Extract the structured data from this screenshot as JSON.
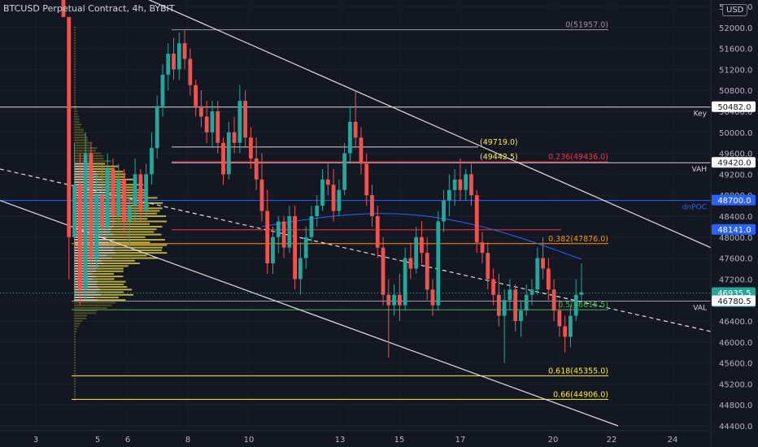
{
  "header": {
    "title": "BTCUSD Perpetual Contract, 4h, BYBIT",
    "currency_button": "USD"
  },
  "chart_data": {
    "type": "candlestick",
    "x_axis": {
      "labels": [
        "3",
        "5",
        "6",
        "8",
        "10",
        "13",
        "15",
        "17",
        "20",
        "22",
        "24"
      ]
    },
    "y_axis": {
      "range": [
        44300,
        52500
      ],
      "ticks": [
        52400,
        52000,
        51600,
        51200,
        50800,
        50400,
        50000,
        49600,
        49200,
        48800,
        48400,
        48000,
        47600,
        47200,
        46800,
        46400,
        46000,
        45600,
        45200,
        44800,
        44400
      ]
    },
    "fib_levels": [
      {
        "label": "0(51957.0)",
        "value": 51957.0,
        "color": "#9598a1"
      },
      {
        "label": "0.236(49436.0)",
        "value": 49436.0,
        "color": "#f23645"
      },
      {
        "label": "0.382(47876.0)",
        "value": 47876.0,
        "color": "#ff9800"
      },
      {
        "label": "0.5(46615.5)",
        "value": 46615.5,
        "color": "#4caf50"
      },
      {
        "label": "0.618(45355.0)",
        "value": 45355.0,
        "color": "#ffeb3b"
      },
      {
        "label": "0.66(44906.0)",
        "value": 44906.0,
        "color": "#ffeb3b"
      }
    ],
    "annotations": [
      {
        "text": "(49719.0)",
        "value": 49719.0
      },
      {
        "text": "(49442.5)",
        "value": 49442.5
      }
    ],
    "price_tags": [
      {
        "label": "Key",
        "value": 50482.0,
        "text": "50482.0"
      },
      {
        "label": "VAH",
        "value": 49420.0,
        "text": "49420.0"
      },
      {
        "label": "dnPOC",
        "value": 48700.0,
        "text": "48700.0"
      },
      {
        "label": "",
        "value": 48141.0,
        "text": "48141.0"
      },
      {
        "label": "",
        "value": 46935.5,
        "text": "46935.5",
        "countdown": "01:08:55"
      },
      {
        "label": "VAL",
        "value": 46780.5,
        "text": "46780.5"
      }
    ],
    "candles": [
      [
        52700,
        53400,
        52200,
        52200
      ],
      [
        52200,
        52200,
        47200,
        48000
      ],
      [
        48000,
        49800,
        46800,
        49000
      ],
      [
        49000,
        49600,
        46700,
        47000
      ],
      [
        47000,
        50000,
        46800,
        49600
      ],
      [
        49600,
        49800,
        47300,
        47600
      ],
      [
        47600,
        49200,
        47400,
        48800
      ],
      [
        48800,
        49400,
        48000,
        48200
      ],
      [
        48200,
        49600,
        48000,
        49300
      ],
      [
        49300,
        49500,
        48200,
        48400
      ],
      [
        48400,
        49400,
        48200,
        49100
      ],
      [
        49100,
        49300,
        48100,
        48300
      ],
      [
        48300,
        48800,
        47800,
        48600
      ],
      [
        48600,
        49500,
        48300,
        49200
      ],
      [
        49200,
        49300,
        48300,
        48500
      ],
      [
        48500,
        49400,
        48400,
        49200
      ],
      [
        49200,
        50000,
        49000,
        49700
      ],
      [
        49700,
        50700,
        49500,
        50500
      ],
      [
        50500,
        51300,
        50300,
        51100
      ],
      [
        51100,
        51700,
        50800,
        51500
      ],
      [
        51500,
        51800,
        51000,
        51200
      ],
      [
        51200,
        51900,
        51000,
        51700
      ],
      [
        51700,
        51960,
        51200,
        51400
      ],
      [
        51400,
        51600,
        50700,
        50900
      ],
      [
        50900,
        51000,
        50300,
        50500
      ],
      [
        50500,
        50800,
        50100,
        50300
      ],
      [
        50300,
        50600,
        49800,
        50000
      ],
      [
        50000,
        50600,
        49700,
        50400
      ],
      [
        50400,
        50600,
        49600,
        49800
      ],
      [
        49800,
        49900,
        49000,
        49200
      ],
      [
        49200,
        50200,
        49100,
        50000
      ],
      [
        50000,
        50300,
        49600,
        49800
      ],
      [
        49800,
        50900,
        49600,
        50600
      ],
      [
        50600,
        50800,
        49700,
        49900
      ],
      [
        49900,
        50100,
        49300,
        49500
      ],
      [
        49500,
        49900,
        48900,
        49100
      ],
      [
        49100,
        49600,
        48300,
        48500
      ],
      [
        48500,
        48900,
        47300,
        47500
      ],
      [
        47500,
        48200,
        47300,
        48000
      ],
      [
        48000,
        48400,
        47700,
        48300
      ],
      [
        48300,
        48400,
        47600,
        47800
      ],
      [
        47800,
        48600,
        47700,
        48400
      ],
      [
        48400,
        48600,
        47000,
        47200
      ],
      [
        47200,
        47900,
        46900,
        47600
      ],
      [
        47600,
        48200,
        47400,
        48000
      ],
      [
        48000,
        48600,
        47900,
        48400
      ],
      [
        48400,
        48800,
        48200,
        48600
      ],
      [
        48600,
        49300,
        48500,
        49100
      ],
      [
        49100,
        49400,
        48800,
        49000
      ],
      [
        49000,
        49300,
        48300,
        48500
      ],
      [
        48500,
        49100,
        48400,
        48900
      ],
      [
        48900,
        49800,
        48800,
        49600
      ],
      [
        49600,
        50500,
        49400,
        50200
      ],
      [
        50200,
        50800,
        49700,
        49900
      ],
      [
        49900,
        50100,
        49200,
        49400
      ],
      [
        49400,
        49600,
        48600,
        48800
      ],
      [
        48800,
        49000,
        48200,
        48400
      ],
      [
        48400,
        48600,
        47600,
        47800
      ],
      [
        47800,
        48000,
        46700,
        46900
      ],
      [
        46900,
        47200,
        45700,
        46700
      ],
      [
        46700,
        47100,
        46500,
        46900
      ],
      [
        46900,
        47300,
        46400,
        46700
      ],
      [
        46700,
        47800,
        46600,
        47600
      ],
      [
        47600,
        47900,
        47200,
        47400
      ],
      [
        47400,
        48200,
        47300,
        48000
      ],
      [
        48000,
        48300,
        47500,
        47700
      ],
      [
        47700,
        48000,
        46800,
        47000
      ],
      [
        47000,
        47200,
        46500,
        46700
      ],
      [
        46700,
        48500,
        46600,
        48300
      ],
      [
        48300,
        48900,
        48100,
        48700
      ],
      [
        48700,
        49200,
        48400,
        48900
      ],
      [
        48900,
        49300,
        48600,
        49100
      ],
      [
        49100,
        49500,
        48700,
        48900
      ],
      [
        48900,
        49300,
        48700,
        49200
      ],
      [
        49200,
        49400,
        48600,
        48800
      ],
      [
        48800,
        48900,
        47700,
        47900
      ],
      [
        47900,
        48100,
        47500,
        47700
      ],
      [
        47700,
        47900,
        47000,
        47200
      ],
      [
        47200,
        47400,
        46700,
        46900
      ],
      [
        46900,
        47300,
        46300,
        46500
      ],
      [
        46500,
        47000,
        45600,
        46800
      ],
      [
        46800,
        47200,
        46600,
        47000
      ],
      [
        47000,
        47100,
        46200,
        46400
      ],
      [
        46400,
        46800,
        46100,
        46600
      ],
      [
        46600,
        47100,
        46500,
        46900
      ],
      [
        46900,
        47200,
        46700,
        47000
      ],
      [
        47000,
        47800,
        46900,
        47600
      ],
      [
        47600,
        48000,
        47200,
        47400
      ],
      [
        47400,
        47600,
        46800,
        47000
      ],
      [
        47000,
        47200,
        46400,
        46600
      ],
      [
        46600,
        46800,
        46100,
        46300
      ],
      [
        46300,
        46500,
        45800,
        46100
      ],
      [
        46100,
        46700,
        45900,
        46500
      ],
      [
        46500,
        47200,
        46400,
        46900
      ],
      [
        46900,
        47500,
        46800,
        46950
      ]
    ]
  }
}
